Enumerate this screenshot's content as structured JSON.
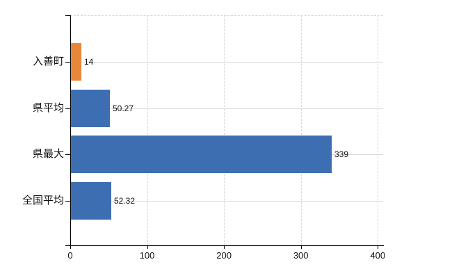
{
  "chart_data": {
    "type": "bar",
    "orientation": "horizontal",
    "title": "",
    "categories": [
      "入善町",
      "県平均",
      "県最大",
      "全国平均"
    ],
    "series": [
      {
        "name": "values",
        "values": [
          14,
          50.27,
          339,
          52.32
        ]
      }
    ],
    "value_labels": [
      "14",
      "50.27",
      "339",
      "52.32"
    ],
    "bar_colors": [
      "#e8873a",
      "#3d6eb2",
      "#3d6eb2",
      "#3d6eb2"
    ],
    "x_tick_values": [
      0,
      100,
      200,
      300,
      400
    ],
    "x_tick_labels": [
      "0",
      "100",
      "200",
      "300",
      "400"
    ],
    "xlim": [
      0,
      407
    ],
    "xlabel": "",
    "ylabel": "",
    "legend": "none",
    "grid": {
      "vertical": "dashed",
      "horizontal": "solid"
    },
    "colors": {
      "axis": "#000000",
      "grid_horizontal": "#d9d9d9",
      "grid_vertical": "#d6d6d6",
      "top_border": "#d6d6d6",
      "text": "#111111",
      "background": "#ffffff"
    }
  }
}
